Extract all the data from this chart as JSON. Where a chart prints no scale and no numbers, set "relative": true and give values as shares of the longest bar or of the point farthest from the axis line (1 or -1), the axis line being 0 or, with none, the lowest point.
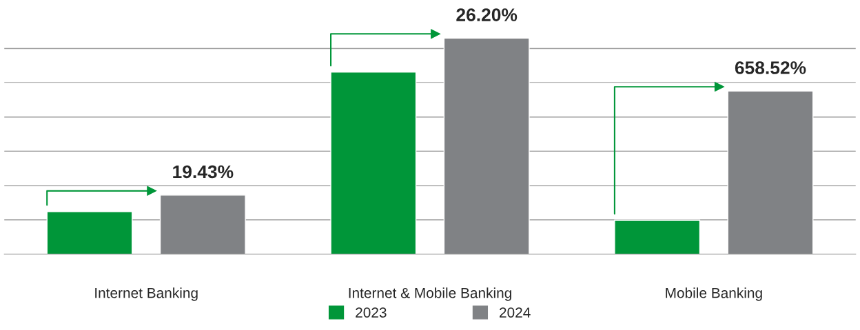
{
  "chart_data": {
    "type": "bar",
    "relative": true,
    "categories": [
      "Internet Banking",
      "Internet & Mobile Banking",
      "Mobile Banking"
    ],
    "series": [
      {
        "name": "2023",
        "color": "#009639",
        "values": [
          0.197,
          0.843,
          0.157
        ]
      },
      {
        "name": "2024",
        "color": "#808285",
        "values": [
          0.273,
          1.0,
          0.755
        ]
      }
    ],
    "annotations": [
      "19.43%",
      "26.20%",
      "658.52%"
    ],
    "grid": "y",
    "legend": "bottom"
  }
}
